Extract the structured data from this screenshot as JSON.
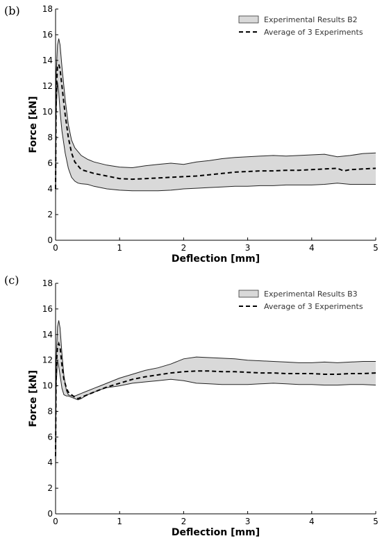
{
  "chart_data": [
    {
      "panel": "(b)",
      "type": "area",
      "xlabel": "Deflection [mm]",
      "ylabel": "Force [kN]",
      "xlim": [
        0,
        5
      ],
      "ylim": [
        0,
        18
      ],
      "xticks": [
        0,
        1,
        2,
        3,
        4,
        5
      ],
      "yticks": [
        0,
        2,
        4,
        6,
        8,
        10,
        12,
        14,
        16,
        18
      ],
      "grid": false,
      "legend_position": "top-right",
      "series": [
        {
          "name": "Experimental Results B2",
          "kind": "band",
          "fill": "#d9d9d9",
          "x": [
            0,
            0.01,
            0.03,
            0.05,
            0.07,
            0.1,
            0.15,
            0.2,
            0.25,
            0.3,
            0.35,
            0.4,
            0.5,
            0.6,
            0.8,
            1.0,
            1.2,
            1.4,
            1.6,
            1.8,
            2.0,
            2.2,
            2.4,
            2.6,
            2.8,
            3.0,
            3.2,
            3.4,
            3.6,
            3.8,
            4.0,
            4.2,
            4.4,
            4.6,
            4.8,
            5.0
          ],
          "upper": [
            3.5,
            13.0,
            15.2,
            15.7,
            15.2,
            13.5,
            11.0,
            9.0,
            7.8,
            7.2,
            6.9,
            6.6,
            6.3,
            6.1,
            5.85,
            5.7,
            5.65,
            5.8,
            5.9,
            6.0,
            5.9,
            6.1,
            6.2,
            6.35,
            6.45,
            6.5,
            6.55,
            6.6,
            6.55,
            6.6,
            6.65,
            6.7,
            6.5,
            6.6,
            6.75,
            6.8
          ],
          "lower": [
            3.5,
            10.0,
            12.3,
            11.5,
            10.0,
            8.5,
            6.8,
            5.6,
            4.9,
            4.6,
            4.45,
            4.4,
            4.35,
            4.2,
            4.0,
            3.9,
            3.85,
            3.85,
            3.85,
            3.9,
            4.0,
            4.05,
            4.1,
            4.15,
            4.2,
            4.2,
            4.25,
            4.25,
            4.3,
            4.3,
            4.3,
            4.35,
            4.45,
            4.35,
            4.35,
            4.35
          ]
        },
        {
          "name": "Average of 3 Experiments",
          "kind": "line",
          "style": "dashed",
          "x": [
            0,
            0.01,
            0.03,
            0.05,
            0.07,
            0.1,
            0.15,
            0.2,
            0.25,
            0.3,
            0.35,
            0.4,
            0.5,
            0.6,
            0.8,
            1.0,
            1.2,
            1.4,
            1.6,
            1.8,
            2.0,
            2.2,
            2.4,
            2.6,
            2.8,
            3.0,
            3.2,
            3.4,
            3.6,
            3.8,
            4.0,
            4.2,
            4.4,
            4.5,
            4.6,
            4.8,
            5.0
          ],
          "y": [
            4.0,
            11.5,
            13.5,
            13.7,
            13.3,
            12.0,
            9.8,
            8.0,
            6.8,
            6.1,
            5.8,
            5.5,
            5.35,
            5.2,
            5.0,
            4.8,
            4.75,
            4.8,
            4.85,
            4.9,
            4.95,
            5.0,
            5.1,
            5.2,
            5.3,
            5.35,
            5.4,
            5.4,
            5.45,
            5.45,
            5.5,
            5.55,
            5.6,
            5.4,
            5.5,
            5.55,
            5.6
          ]
        }
      ]
    },
    {
      "panel": "(c)",
      "type": "area",
      "xlabel": "Deflection [mm]",
      "ylabel": "Force [kN]",
      "xlim": [
        0,
        5
      ],
      "ylim": [
        0,
        18
      ],
      "xticks": [
        0,
        1,
        2,
        3,
        4,
        5
      ],
      "yticks": [
        0,
        2,
        4,
        6,
        8,
        10,
        12,
        14,
        16,
        18
      ],
      "grid": false,
      "legend_position": "top-right",
      "series": [
        {
          "name": "Experimental Results B3",
          "kind": "band",
          "fill": "#d9d9d9",
          "x": [
            0,
            0.01,
            0.03,
            0.05,
            0.07,
            0.1,
            0.13,
            0.17,
            0.2,
            0.25,
            0.3,
            0.35,
            0.4,
            0.5,
            0.6,
            0.7,
            0.8,
            1.0,
            1.2,
            1.4,
            1.6,
            1.8,
            2.0,
            2.2,
            2.4,
            2.6,
            2.8,
            3.0,
            3.2,
            3.4,
            3.6,
            3.8,
            4.0,
            4.2,
            4.4,
            4.6,
            4.8,
            5.0
          ],
          "upper": [
            3.5,
            12.0,
            14.6,
            15.1,
            14.5,
            12.5,
            10.8,
            9.6,
            9.3,
            9.2,
            9.2,
            9.3,
            9.4,
            9.6,
            9.8,
            10.0,
            10.2,
            10.6,
            10.9,
            11.2,
            11.4,
            11.7,
            12.1,
            12.25,
            12.2,
            12.15,
            12.1,
            12.0,
            11.95,
            11.9,
            11.85,
            11.8,
            11.8,
            11.85,
            11.8,
            11.85,
            11.9,
            11.9
          ],
          "lower": [
            3.5,
            10.0,
            12.0,
            11.5,
            10.8,
            9.8,
            9.3,
            9.2,
            9.2,
            9.1,
            9.0,
            8.9,
            9.0,
            9.3,
            9.5,
            9.7,
            9.85,
            10.0,
            10.2,
            10.3,
            10.4,
            10.5,
            10.4,
            10.2,
            10.15,
            10.1,
            10.1,
            10.1,
            10.15,
            10.2,
            10.15,
            10.1,
            10.1,
            10.05,
            10.05,
            10.1,
            10.1,
            10.05
          ]
        },
        {
          "name": "Average of 3 Experiments",
          "kind": "line",
          "style": "dashed",
          "x": [
            0,
            0.01,
            0.03,
            0.05,
            0.07,
            0.1,
            0.13,
            0.17,
            0.2,
            0.25,
            0.3,
            0.35,
            0.4,
            0.5,
            0.6,
            0.7,
            0.8,
            1.0,
            1.2,
            1.4,
            1.6,
            1.8,
            2.0,
            2.2,
            2.4,
            2.6,
            2.8,
            3.0,
            3.2,
            3.4,
            3.6,
            3.8,
            4.0,
            4.2,
            4.4,
            4.6,
            4.8,
            5.0
          ],
          "y": [
            4.5,
            11.5,
            13.0,
            13.3,
            13.0,
            11.6,
            10.5,
            9.8,
            9.5,
            9.3,
            9.1,
            9.0,
            9.1,
            9.3,
            9.5,
            9.7,
            9.9,
            10.2,
            10.5,
            10.7,
            10.85,
            11.0,
            11.1,
            11.15,
            11.15,
            11.1,
            11.1,
            11.05,
            11.0,
            11.0,
            10.95,
            10.95,
            10.95,
            10.9,
            10.9,
            10.95,
            10.95,
            11.0
          ]
        }
      ]
    }
  ]
}
